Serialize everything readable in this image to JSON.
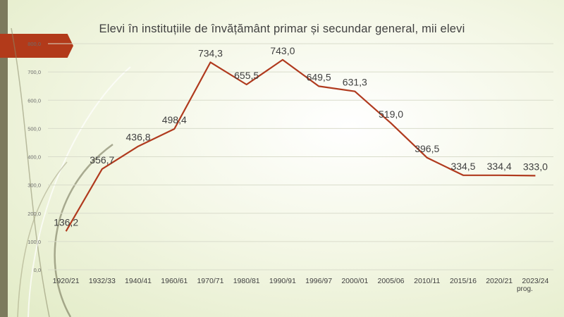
{
  "chart_data": {
    "type": "line",
    "title": "Elevi în  instituțiile de învățământ primar și secundar general, mii elevi",
    "categories": [
      "1920/21",
      "1932/33",
      "1940/41",
      "1960/61",
      "1970/71",
      "1980/81",
      "1990/91",
      "1996/97",
      "2000/01",
      "2005/06",
      "2010/11",
      "2015/16",
      "2020/21",
      "2023/24"
    ],
    "category_note": {
      "index": 13,
      "text": "prog."
    },
    "series": [
      {
        "name": "Elevi",
        "values": [
          136.2,
          356.7,
          436.8,
          498.4,
          734.3,
          655.5,
          743.0,
          649.5,
          631.3,
          519.0,
          396.5,
          334.5,
          334.4,
          333.0
        ]
      }
    ],
    "data_labels": [
      "136,2",
      "356,7",
      "436,8",
      "498,4",
      "734,3",
      "655,5",
      "743,0",
      "649,5",
      "631,3",
      "519,0",
      "396,5",
      "334,5",
      "334,4",
      "333,0"
    ],
    "y_ticks": [
      "0,0",
      "100,0",
      "200,0",
      "300,0",
      "400,0",
      "500,0",
      "600,0",
      "700,0",
      "800,0"
    ],
    "ylim": [
      0,
      800
    ],
    "grid": true,
    "line_color": "#b03a1e"
  }
}
